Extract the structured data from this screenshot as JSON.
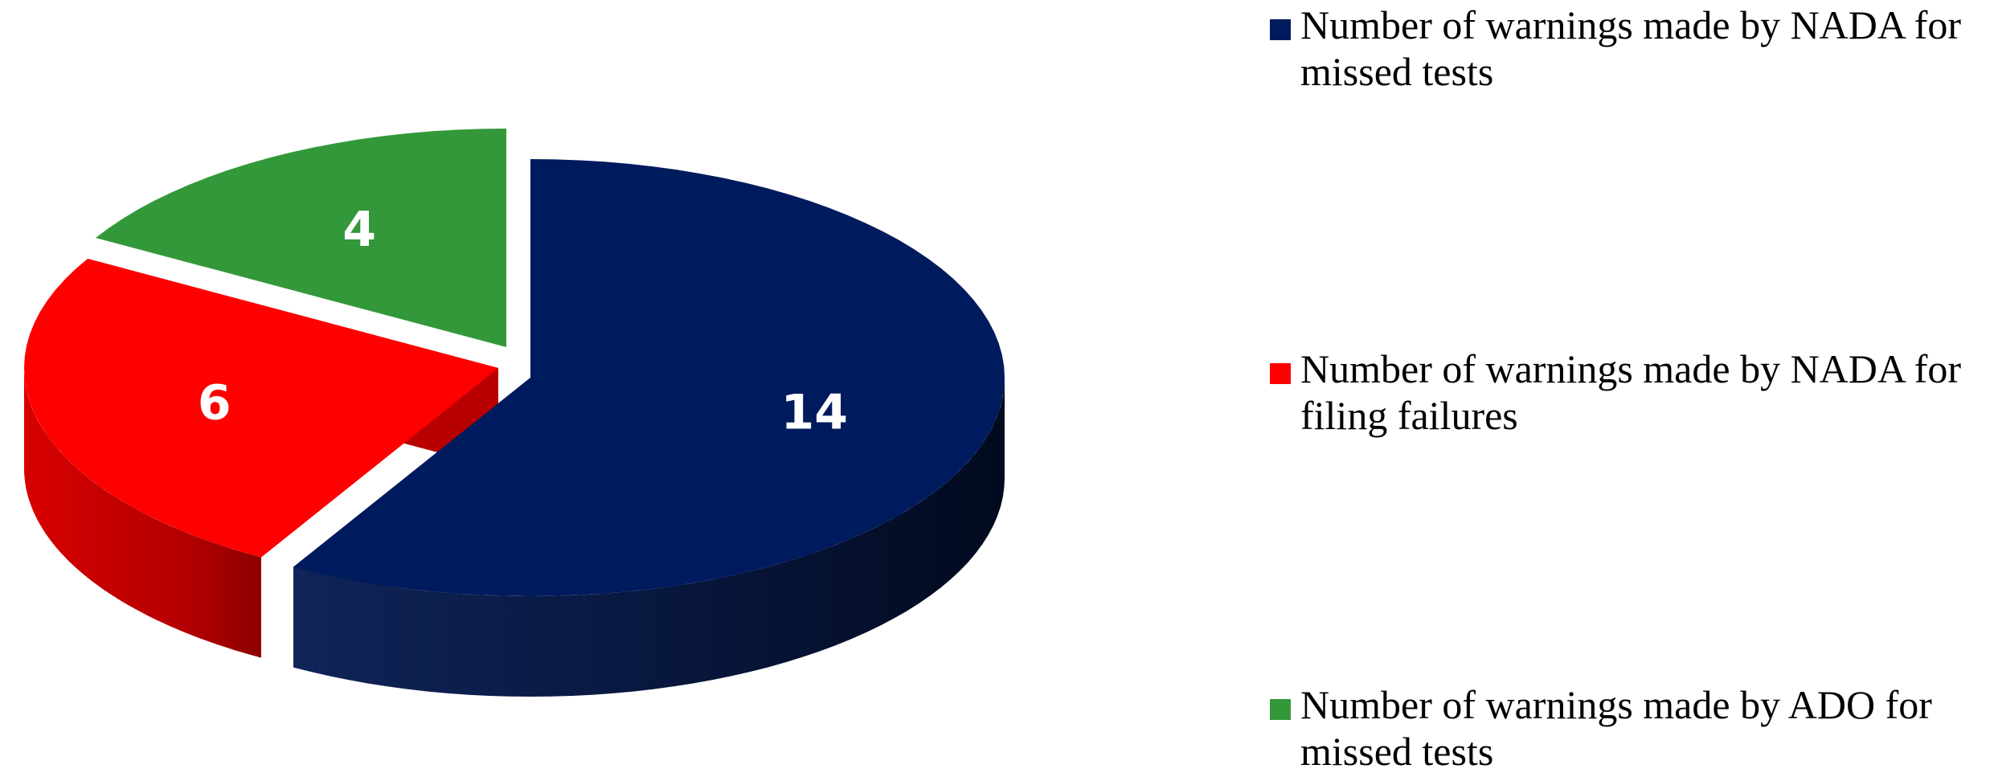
{
  "chart_data": {
    "type": "pie",
    "style": "3d-exploded",
    "categories": [
      "Number of warnings made by NADA for missed tests",
      "Number of warnings made by NADA for filing failures",
      "Number of warnings made by ADO for missed tests"
    ],
    "values": [
      14,
      6,
      4
    ],
    "data_labels": [
      "14",
      "6",
      "4"
    ],
    "colors": [
      "#001a5e",
      "#ff0000",
      "#33983a"
    ],
    "legend_position": "right"
  },
  "legend": {
    "items": [
      {
        "label": "Number of warnings made by NADA for missed tests",
        "color": "#001a5e"
      },
      {
        "label": "Number of warnings made by NADA for filing failures",
        "color": "#ff0000"
      },
      {
        "label": "Number of warnings made by ADO for missed tests",
        "color": "#33983a"
      }
    ]
  }
}
